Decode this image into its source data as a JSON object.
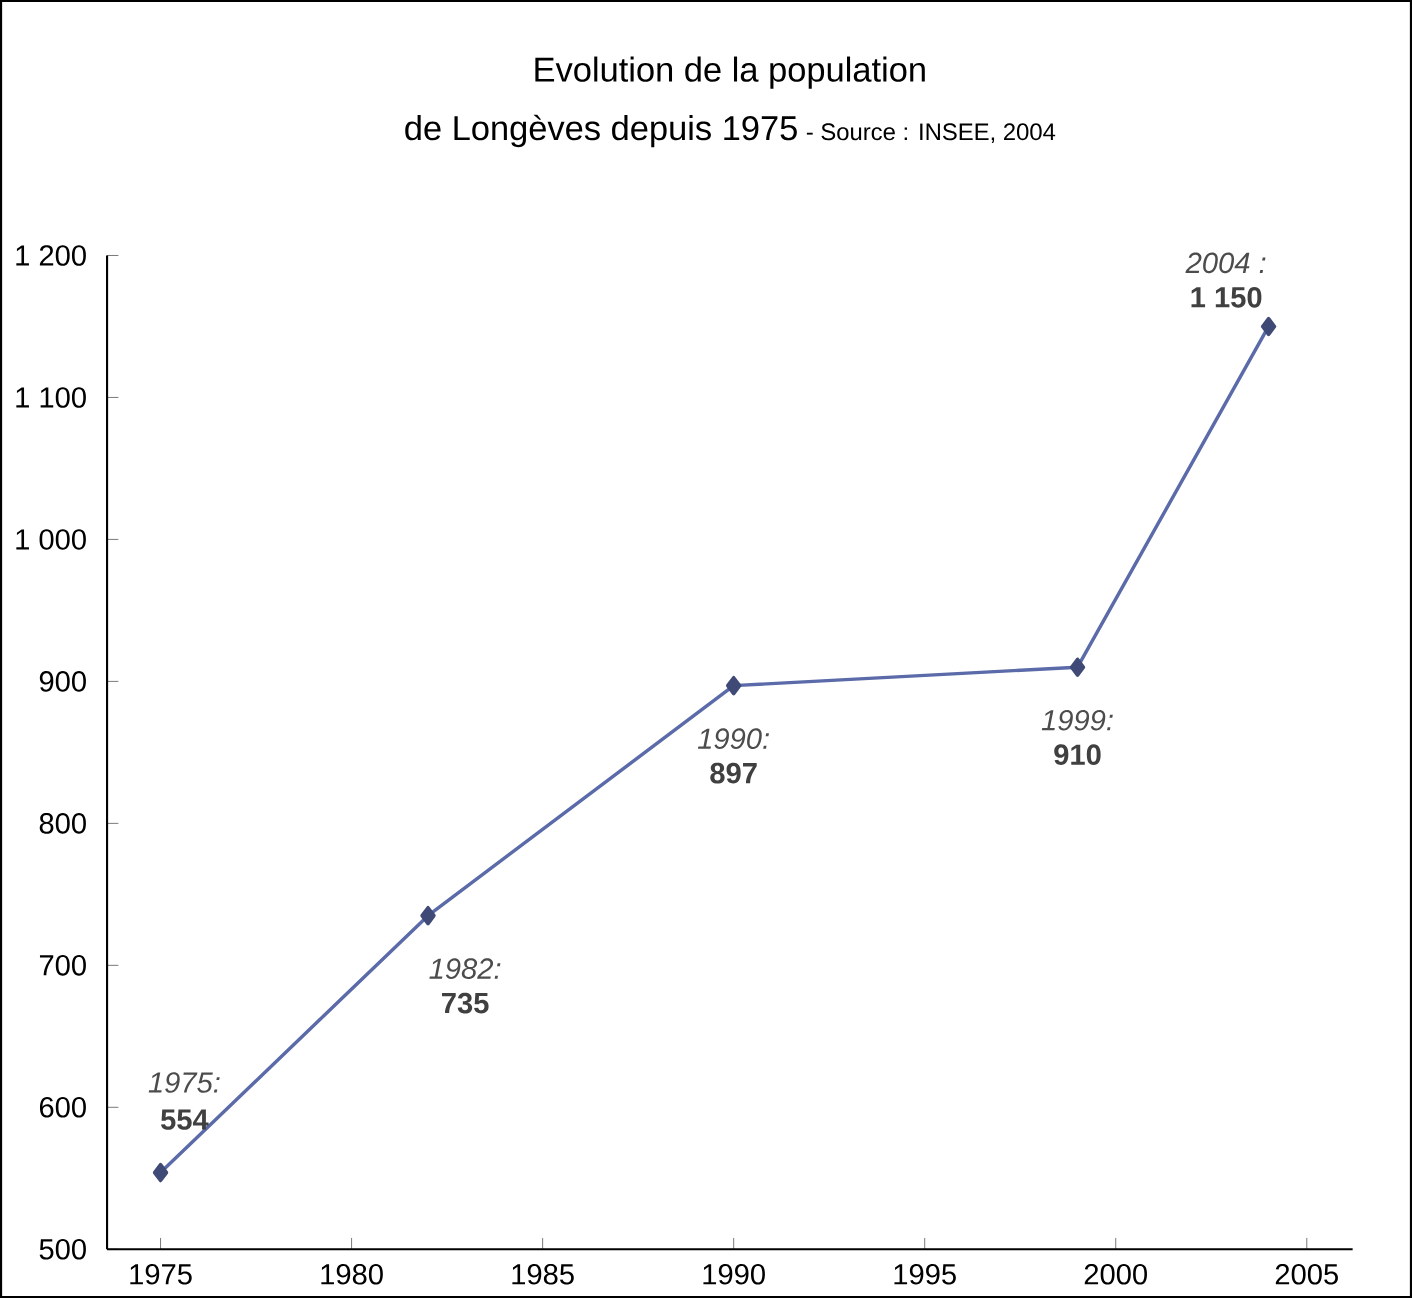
{
  "chart_data": {
    "type": "line",
    "title": "Evolution de la population",
    "subtitle": "de Longèves depuis 1975",
    "annotations": [
      "- Source : INSEE, 2004",
      {
        "text": "1975:",
        "x": 1975,
        "y": 554
      },
      {
        "text": "1982:",
        "x": 1982,
        "y": 735
      },
      {
        "text": "1990:",
        "x": 1990,
        "y": 897
      },
      {
        "text": "1999:",
        "x": 1999,
        "y": 910
      },
      {
        "text": "2004 :",
        "x": 2004,
        "y": 1150
      }
    ],
    "x": [
      1975,
      1982,
      1990,
      1999,
      2004
    ],
    "series": [
      {
        "color": "#5b6aa8",
        "values": [
          554,
          735,
          897,
          910,
          1150
        ],
        "value_labels": [
          "554",
          "735",
          "897",
          "910",
          "1 150"
        ]
      }
    ],
    "xlim": [
      1973.6,
      2006.2
    ],
    "xticks": [
      1975,
      1980,
      1985,
      1990,
      1995,
      2000,
      2005
    ],
    "ylim": [
      500,
      1200
    ],
    "yticks": [
      500,
      600,
      700,
      800,
      900,
      {
        "value": 1000,
        "label": "1 000"
      },
      {
        "value": 1100,
        "label": "1 100"
      },
      {
        "value": 1200,
        "label": "1 200"
      }
    ],
    "marker": "diamond",
    "line_style": "solid",
    "grid": false
  }
}
